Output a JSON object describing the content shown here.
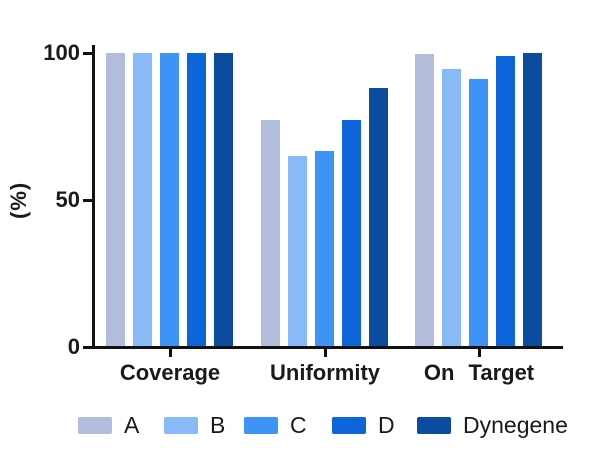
{
  "chart_data": {
    "type": "bar",
    "title": "",
    "categories": [
      "Coverage",
      "Uniformity",
      "On Target"
    ],
    "series": [
      {
        "name": "A",
        "color": "#b2bddc",
        "values": [
          100,
          77,
          99.5
        ]
      },
      {
        "name": "B",
        "color": "#87baf7",
        "values": [
          100,
          65,
          94.5
        ]
      },
      {
        "name": "C",
        "color": "#3e93f6",
        "values": [
          100,
          66.5,
          91
        ]
      },
      {
        "name": "D",
        "color": "#0d66d9",
        "values": [
          100,
          77,
          99
        ]
      },
      {
        "name": "Dynegene",
        "color": "#0c4c9e",
        "values": [
          100,
          88,
          100
        ]
      }
    ],
    "ylabel": "(%)",
    "yticks": [
      0,
      50,
      100
    ],
    "ylim": [
      0,
      100
    ],
    "grid": false,
    "legend_position": "bottom",
    "axis_color": "#111111"
  }
}
